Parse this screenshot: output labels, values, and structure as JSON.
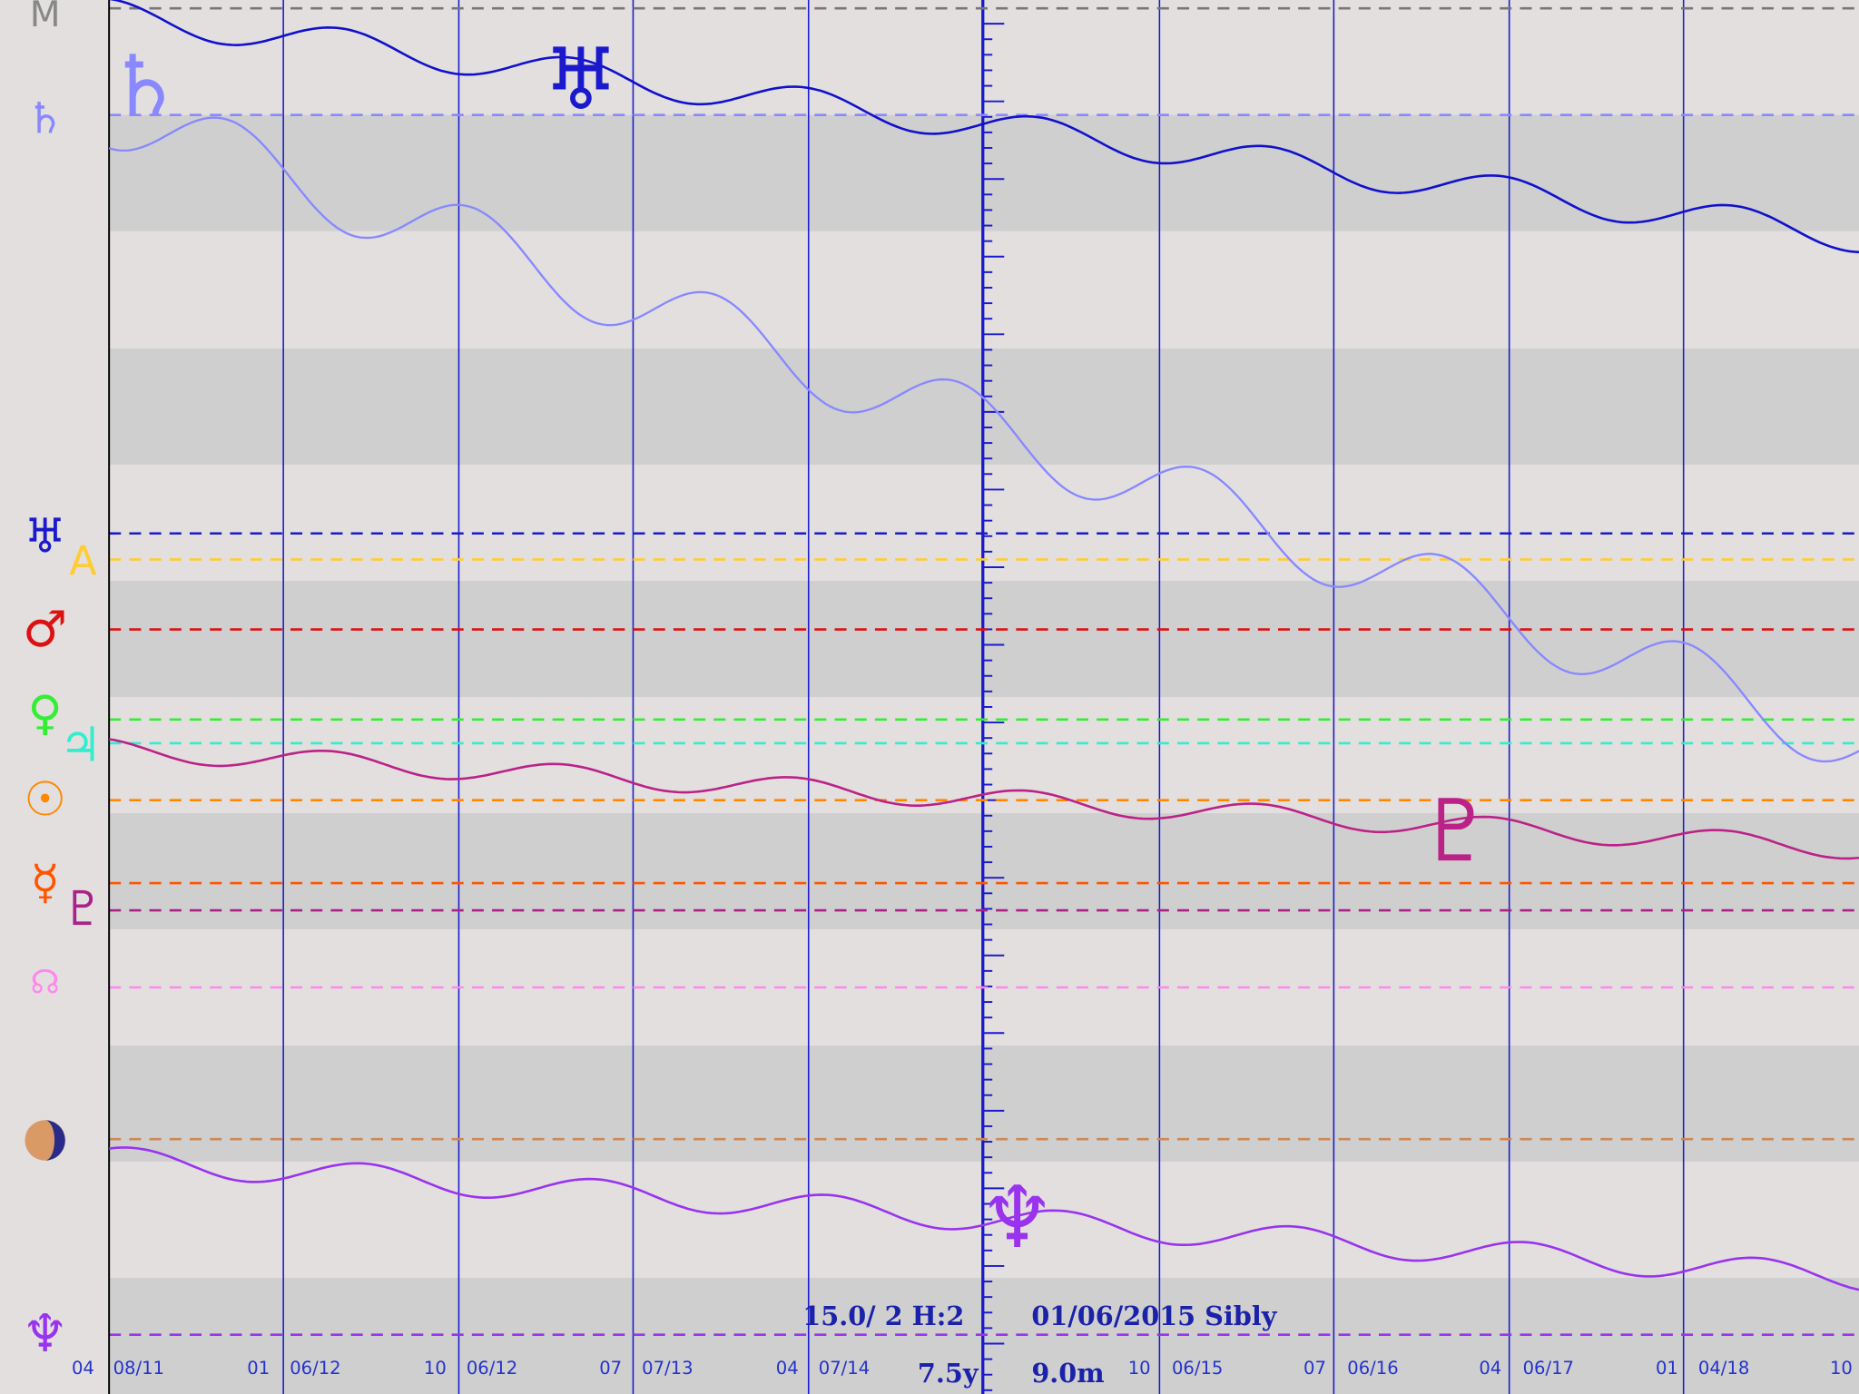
{
  "left_glyphs": [
    "M",
    "♄",
    "♅",
    "A",
    "♂",
    "♀",
    "♃",
    "☉",
    "☿",
    "♇",
    "☊",
    "♆"
  ],
  "chart_glyphs": [
    "♄",
    "♅",
    "♇",
    "♆"
  ],
  "date_labels": [
    "04",
    "08/11",
    "01",
    "06/12",
    "10",
    "06/12",
    "07",
    "07/13",
    "04",
    "07/14",
    "10",
    "06/15",
    "07",
    "06/16",
    "04",
    "06/17",
    "01",
    "04/18",
    "10"
  ],
  "footer": {
    "orb": "15.0/ 2 H:2",
    "date_system": "01/06/2015  Sibly",
    "span": "7.5y",
    "step": "9.0m"
  }
}
